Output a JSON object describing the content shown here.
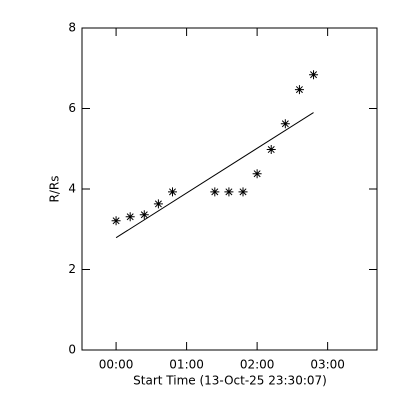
{
  "chart_data": {
    "type": "scatter",
    "x_label": "Start Time (13-Oct-25 23:30:07)",
    "y_label": "R/Rs",
    "xlim": [
      -29,
      222
    ],
    "ylim": [
      0,
      8
    ],
    "xticks": [
      {
        "value": 0,
        "label": "00:00"
      },
      {
        "value": 60,
        "label": "01:00"
      },
      {
        "value": 120,
        "label": "02:00"
      },
      {
        "value": 180,
        "label": "03:00"
      }
    ],
    "yticks": [
      0,
      2,
      4,
      6,
      8
    ],
    "color": "#000000",
    "x": [
      0,
      12,
      24,
      36,
      48,
      84,
      96,
      108,
      120,
      132,
      144,
      156,
      168
    ],
    "values": [
      3.21,
      3.31,
      3.36,
      3.63,
      3.93,
      3.93,
      3.93,
      3.93,
      4.38,
      4.98,
      5.62,
      6.47,
      6.84
    ],
    "fit": {
      "x": [
        0,
        168
      ],
      "values": [
        2.79,
        5.9
      ]
    }
  }
}
